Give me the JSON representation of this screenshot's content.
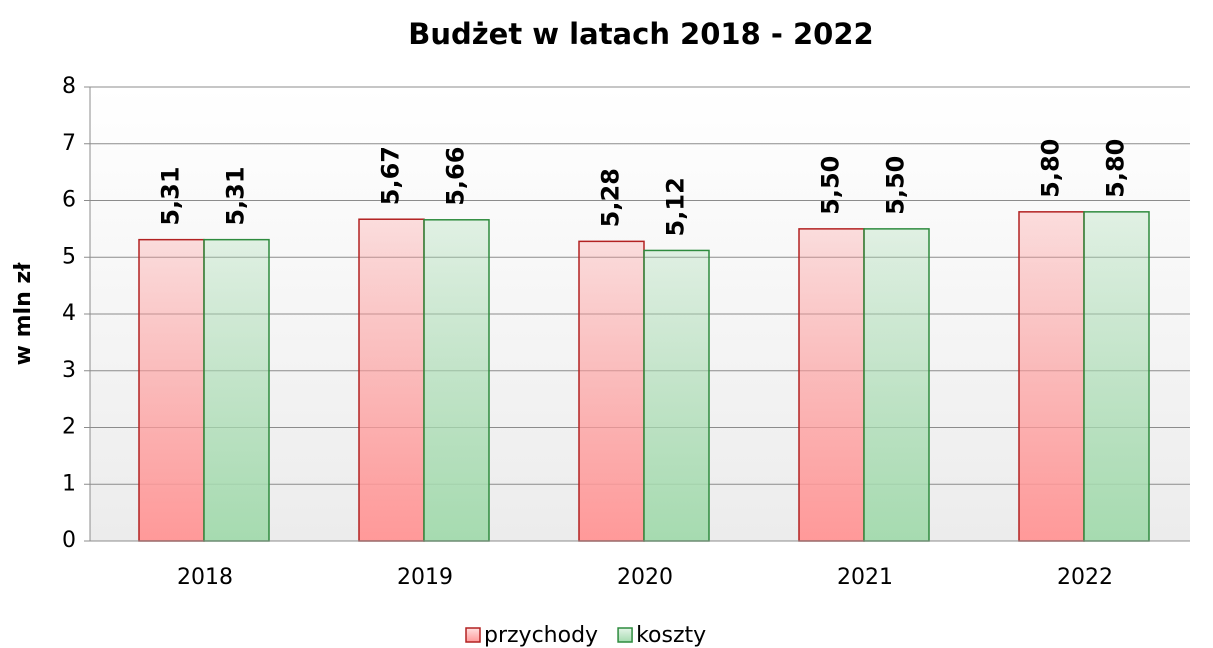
{
  "chart_data": {
    "type": "bar",
    "title": "Budżet w latach 2018 - 2022",
    "ylabel": "w mln zł",
    "categories": [
      "2018",
      "2019",
      "2020",
      "2021",
      "2022"
    ],
    "series": [
      {
        "name": "przychody",
        "color": "#ff9999",
        "values": [
          5.31,
          5.67,
          5.28,
          5.5,
          5.8
        ],
        "value_labels": [
          "5,31",
          "5,67",
          "5,28",
          "5,50",
          "5,80"
        ]
      },
      {
        "name": "koszty",
        "color": "#a6dbb0",
        "values": [
          5.31,
          5.66,
          5.12,
          5.5,
          5.8
        ],
        "value_labels": [
          "5,31",
          "5,66",
          "5,12",
          "5,50",
          "5,80"
        ]
      }
    ],
    "ylim": [
      0,
      8
    ],
    "yticks": [
      0,
      1,
      2,
      3,
      4,
      5,
      6,
      7,
      8
    ],
    "grid": true,
    "legend": "bottom"
  }
}
